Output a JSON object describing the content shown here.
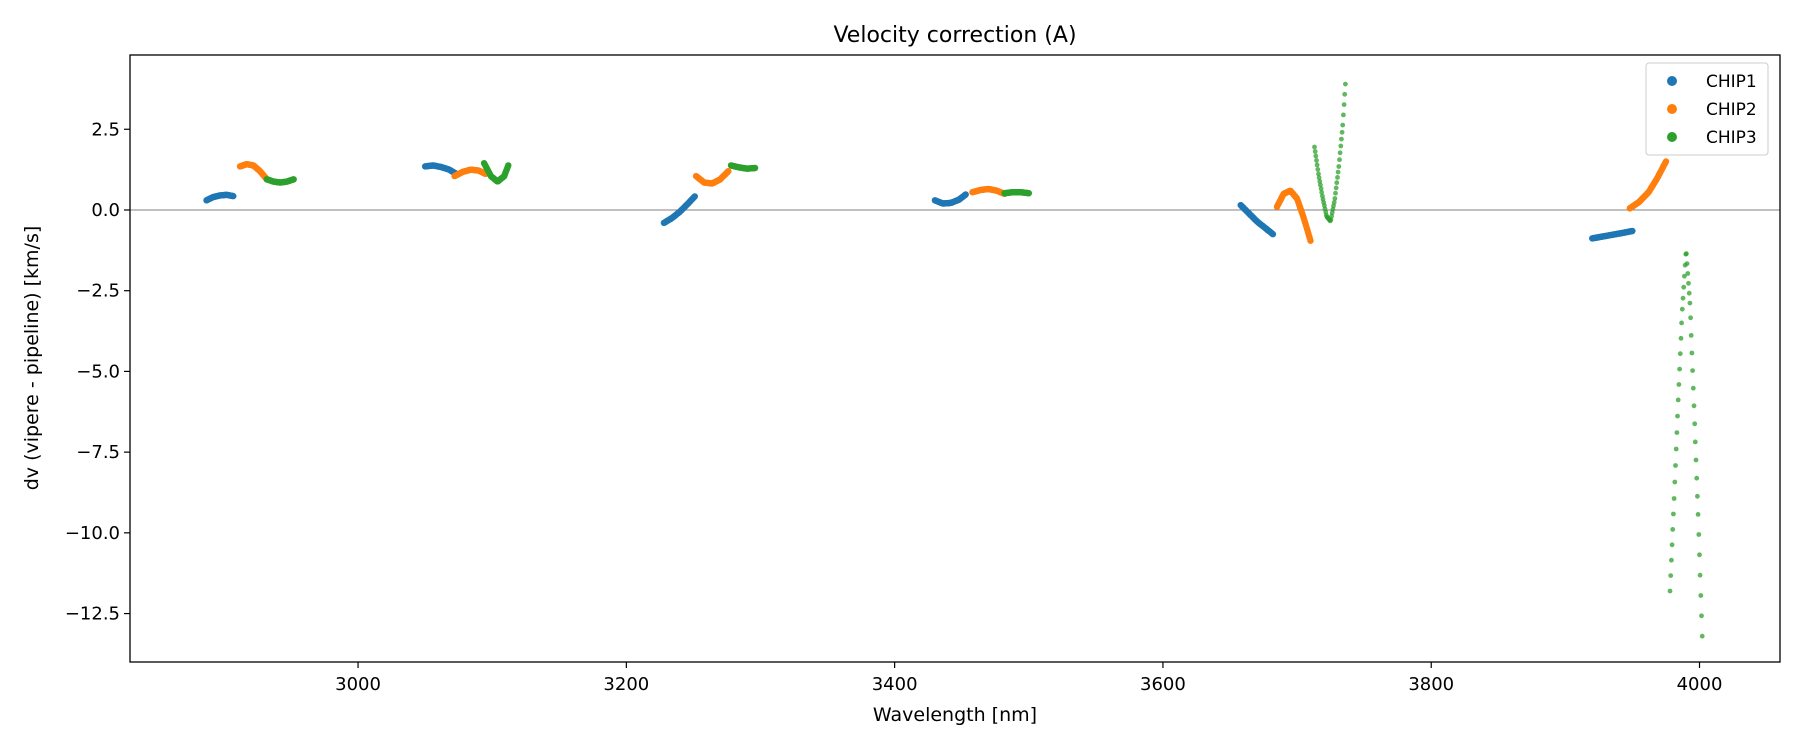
{
  "chart_data": {
    "type": "scatter",
    "title": "Velocity correction (A)",
    "xlabel": "Wavelength [nm]",
    "ylabel": "dv (vipere - pipeline) [km/s]",
    "xlim": [
      2830,
      4060
    ],
    "ylim": [
      -14.0,
      4.8
    ],
    "xticks": [
      3000,
      3200,
      3400,
      3600,
      3800,
      4000
    ],
    "xtick_labels": [
      "3000",
      "3200",
      "3400",
      "3600",
      "3800",
      "4000"
    ],
    "yticks": [
      2.5,
      0.0,
      -2.5,
      -5.0,
      -7.5,
      -10.0,
      -12.5
    ],
    "ytick_labels": [
      "2.5",
      "0.0",
      "−2.5",
      "−5.0",
      "−7.5",
      "−10.0",
      "−12.5"
    ],
    "hline": 0.0,
    "grid": false,
    "legend_position": "top-right",
    "series": [
      {
        "name": "CHIP1",
        "color": "#1f77b4",
        "segments": [
          {
            "x": [
              2887,
              2892,
              2897,
              2902,
              2907
            ],
            "y": [
              0.3,
              0.4,
              0.45,
              0.47,
              0.43
            ]
          },
          {
            "x": [
              3050,
              3056,
              3062,
              3068,
              3074
            ],
            "y": [
              1.35,
              1.38,
              1.33,
              1.25,
              1.1
            ]
          },
          {
            "x": [
              3228,
              3234,
              3240,
              3246,
              3251
            ],
            "y": [
              -0.4,
              -0.25,
              -0.05,
              0.2,
              0.42
            ]
          },
          {
            "x": [
              3430,
              3436,
              3442,
              3448,
              3453
            ],
            "y": [
              0.3,
              0.2,
              0.22,
              0.32,
              0.48
            ]
          },
          {
            "x": [
              3658,
              3664,
              3670,
              3676,
              3682
            ],
            "y": [
              0.15,
              -0.1,
              -0.35,
              -0.55,
              -0.75
            ]
          },
          {
            "x": [
              3920,
              3928,
              3936,
              3944,
              3950
            ],
            "y": [
              -0.88,
              -0.82,
              -0.76,
              -0.7,
              -0.65
            ]
          }
        ]
      },
      {
        "name": "CHIP2",
        "color": "#ff7f0e",
        "segments": [
          {
            "x": [
              2912,
              2917,
              2922,
              2927,
              2932
            ],
            "y": [
              1.35,
              1.42,
              1.38,
              1.2,
              0.95
            ]
          },
          {
            "x": [
              3072,
              3078,
              3084,
              3090,
              3095
            ],
            "y": [
              1.05,
              1.18,
              1.25,
              1.22,
              1.12
            ]
          },
          {
            "x": [
              3252,
              3258,
              3264,
              3270,
              3276
            ],
            "y": [
              1.05,
              0.85,
              0.82,
              0.95,
              1.2
            ]
          },
          {
            "x": [
              3458,
              3464,
              3470,
              3476,
              3482
            ],
            "y": [
              0.55,
              0.62,
              0.65,
              0.6,
              0.5
            ]
          },
          {
            "x": [
              3685,
              3690,
              3695,
              3700,
              3705,
              3710
            ],
            "y": [
              0.1,
              0.5,
              0.6,
              0.35,
              -0.25,
              -0.95
            ]
          },
          {
            "x": [
              3948,
              3955,
              3962,
              3968,
              3975
            ],
            "y": [
              0.05,
              0.25,
              0.55,
              0.95,
              1.5
            ]
          }
        ]
      },
      {
        "name": "CHIP3",
        "color": "#2ca02c",
        "segments": [
          {
            "x": [
              2932,
              2937,
              2942,
              2947,
              2952
            ],
            "y": [
              0.95,
              0.88,
              0.85,
              0.88,
              0.95
            ]
          },
          {
            "x": [
              3094,
              3099,
              3104,
              3109,
              3112
            ],
            "y": [
              1.45,
              1.05,
              0.88,
              1.05,
              1.38
            ]
          },
          {
            "x": [
              3278,
              3284,
              3290,
              3296
            ],
            "y": [
              1.38,
              1.32,
              1.28,
              1.3
            ]
          },
          {
            "x": [
              3482,
              3488,
              3494,
              3500
            ],
            "y": [
              0.52,
              0.55,
              0.55,
              0.52
            ]
          },
          {
            "x": [
              3713,
              3716,
              3719,
              3722,
              3725,
              3728,
              3731,
              3734,
              3736
            ],
            "y": [
              1.95,
              1.1,
              0.4,
              -0.2,
              -0.35,
              0.3,
              1.3,
              2.6,
              3.9
            ]
          },
          {
            "x": [
              3978,
              3981,
              3984,
              3987,
              3990,
              3993,
              3996,
              3999,
              4002
            ],
            "y": [
              -11.8,
              -9.0,
              -6.0,
              -3.2,
              -1.2,
              -3.0,
              -6.2,
              -9.5,
              -13.2
            ]
          }
        ]
      }
    ]
  }
}
